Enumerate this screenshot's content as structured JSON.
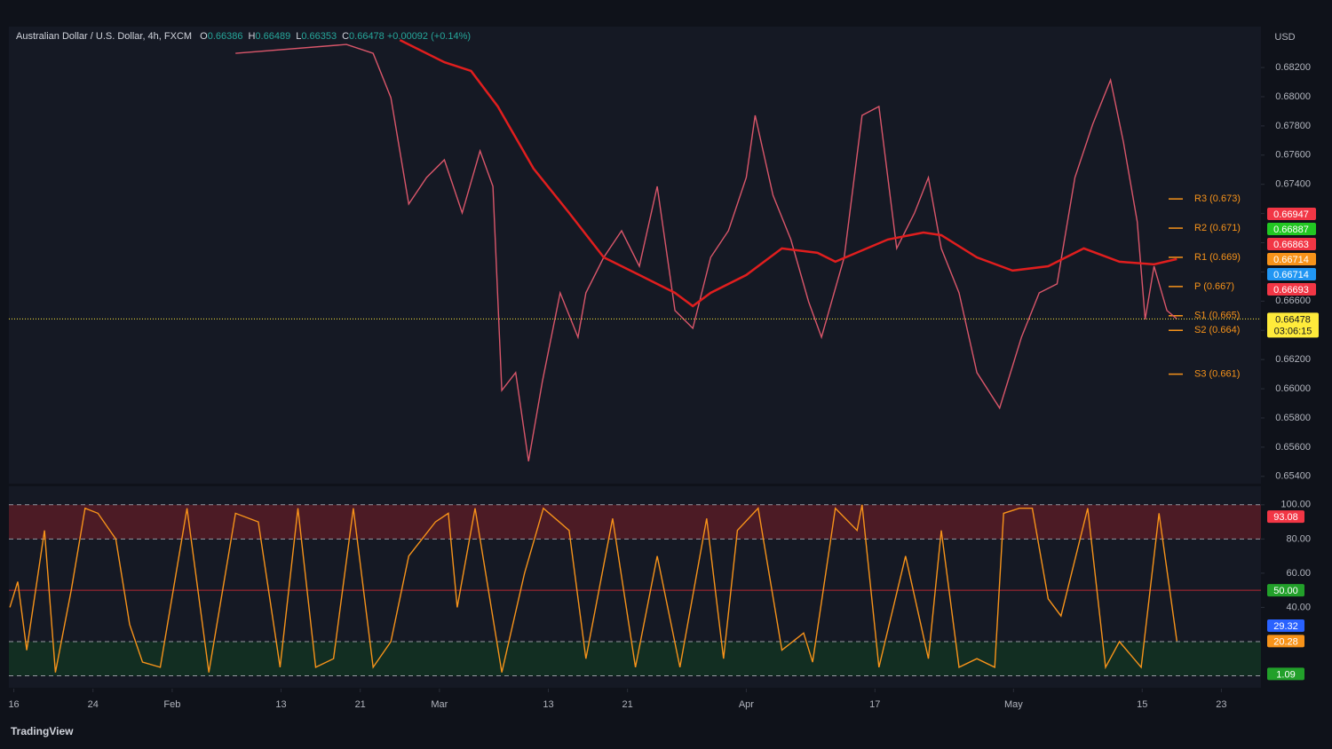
{
  "header": {
    "symbol": "Australian Dollar / U.S. Dollar, 4h, FXCM",
    "ohlc": [
      {
        "key": "O",
        "value": "0.66386"
      },
      {
        "key": "H",
        "value": "0.66489"
      },
      {
        "key": "L",
        "value": "0.66353"
      },
      {
        "key": "C",
        "value": "0.66478"
      }
    ],
    "change": "+0.00092 (+0.14%)"
  },
  "brand": "TradingView",
  "chart_data": [
    {
      "type": "line",
      "currency": "USD",
      "xlim": [
        -0.5,
        126
      ],
      "xticks": [
        {
          "value": 0,
          "label": "16"
        },
        {
          "value": 8,
          "label": "24"
        },
        {
          "value": 16,
          "label": "Feb"
        },
        {
          "value": 27,
          "label": "13"
        },
        {
          "value": 35,
          "label": "21"
        },
        {
          "value": 43,
          "label": "Mar"
        },
        {
          "value": 54,
          "label": "13"
        },
        {
          "value": 62,
          "label": "21"
        },
        {
          "value": 74,
          "label": "Apr"
        },
        {
          "value": 87,
          "label": "17"
        },
        {
          "value": 101,
          "label": "May"
        },
        {
          "value": 114,
          "label": "15"
        },
        {
          "value": 122,
          "label": "23"
        }
      ],
      "ylim": [
        0.6535,
        0.6848
      ],
      "yticks": [
        {
          "value": 0.654,
          "label": "0.65400"
        },
        {
          "value": 0.656,
          "label": "0.65600"
        },
        {
          "value": 0.658,
          "label": "0.65800"
        },
        {
          "value": 0.66,
          "label": "0.66000"
        },
        {
          "value": 0.662,
          "label": "0.66200"
        },
        {
          "value": 0.664,
          "label": "0.66400"
        },
        {
          "value": 0.666,
          "label": "0.66600"
        },
        {
          "value": 0.668,
          "label": "0.66800"
        },
        {
          "value": 0.67,
          "label": "0.67000"
        },
        {
          "value": 0.672,
          "label": "0.67200"
        },
        {
          "value": 0.674,
          "label": "0.67400"
        },
        {
          "value": 0.676,
          "label": "0.67600"
        },
        {
          "value": 0.678,
          "label": "0.67800"
        },
        {
          "value": 0.68,
          "label": "0.68000"
        },
        {
          "value": 0.682,
          "label": "0.68200"
        }
      ],
      "series": [
        {
          "color": "#d9566a",
          "x": [
            22.4,
            33.6,
            36.3,
            38.1,
            39.9,
            41.7,
            43.5,
            45.3,
            47.1,
            48.4,
            49.3,
            50.7,
            52.0,
            53.4,
            55.2,
            57.0,
            57.8,
            59.6,
            61.4,
            63.2,
            65.0,
            66.8,
            68.6,
            70.4,
            72.2,
            74.0,
            74.9,
            76.7,
            78.5,
            80.3,
            81.6,
            83.9,
            85.7,
            87.4,
            89.2,
            91.0,
            92.4,
            93.7,
            95.5,
            97.3,
            99.6,
            101.8,
            103.6,
            105.4,
            107.2,
            109.0,
            110.8,
            112.1,
            113.5,
            114.3,
            115.2,
            116.5,
            117.5
          ],
          "values": [
            0.68297,
            0.68358,
            0.68297,
            0.67993,
            0.67265,
            0.67447,
            0.67568,
            0.67204,
            0.67629,
            0.67386,
            0.65989,
            0.66111,
            0.65503,
            0.6605,
            0.66657,
            0.66353,
            0.66657,
            0.669,
            0.67082,
            0.66839,
            0.67386,
            0.66536,
            0.66414,
            0.669,
            0.67082,
            0.67447,
            0.67872,
            0.67325,
            0.67022,
            0.66596,
            0.66353,
            0.669,
            0.67872,
            0.67933,
            0.66961,
            0.67204,
            0.67447,
            0.66961,
            0.66657,
            0.66111,
            0.65868,
            0.66353,
            0.66657,
            0.66718,
            0.67447,
            0.67811,
            0.68115,
            0.6769,
            0.67143,
            0.66475,
            0.66839,
            0.66536,
            0.66478
          ]
        },
        {
          "color": "#e01e1e",
          "x": [
            39.0,
            43.5,
            46.2,
            48.9,
            52.5,
            56.1,
            59.6,
            63.2,
            66.8,
            68.6,
            70.4,
            74.0,
            77.6,
            81.2,
            83.0,
            88.3,
            91.9,
            93.7,
            97.3,
            100.9,
            104.5,
            108.1,
            111.7,
            115.2,
            117.5
          ],
          "values": [
            0.68388,
            0.68236,
            0.68176,
            0.67933,
            0.67508,
            0.67204,
            0.669,
            0.66779,
            0.66657,
            0.66566,
            0.66657,
            0.66779,
            0.66961,
            0.66931,
            0.6687,
            0.67022,
            0.6707,
            0.67052,
            0.669,
            0.66809,
            0.66839,
            0.66961,
            0.6687,
            0.66852,
            0.66888
          ]
        }
      ],
      "pivots": [
        {
          "label": "R3 (0.673)",
          "value": 0.673
        },
        {
          "label": "R2 (0.671)",
          "value": 0.671
        },
        {
          "label": "R1 (0.669)",
          "value": 0.669
        },
        {
          "label": "P (0.667)",
          "value": 0.667
        },
        {
          "label": "S1 (0.665)",
          "value": 0.665
        },
        {
          "label": "S2 (0.664)",
          "value": 0.664
        },
        {
          "label": "S3 (0.661)",
          "value": 0.661
        }
      ],
      "price_labels": [
        {
          "value": 0.66947,
          "color": "#f23645"
        },
        {
          "value": 0.66887,
          "color": "#22c722"
        },
        {
          "value": 0.66863,
          "color": "#f23645"
        },
        {
          "value": 0.66714,
          "color": "#f7931a"
        },
        {
          "value": 0.66714,
          "color": "#2196f3"
        },
        {
          "value": 0.66693,
          "color": "#f23645"
        }
      ],
      "last_price": {
        "value": 0.66478,
        "countdown": "03:06:15",
        "color": "#ffeb3b"
      }
    },
    {
      "type": "line",
      "xlim": [
        -0.5,
        126
      ],
      "ylim": [
        -7,
        110.8
      ],
      "yticks": [
        {
          "value": 100,
          "label": "100.00"
        },
        {
          "value": 80,
          "label": "80.00"
        },
        {
          "value": 60,
          "label": "60.00"
        },
        {
          "value": 40,
          "label": "40.00"
        }
      ],
      "bands": [
        {
          "from": 80,
          "to": 100,
          "color": "#5a1c26"
        },
        {
          "from": 0,
          "to": 20,
          "color": "#123322"
        }
      ],
      "levels": [
        100,
        80,
        20,
        0
      ],
      "midline": {
        "value": 50,
        "color": "#b22833"
      },
      "series": [
        {
          "color": "#f7931a",
          "x": [
            -0.4,
            0.4,
            1.3,
            3.1,
            4.2,
            5.8,
            7.2,
            8.5,
            10.3,
            11.7,
            13.0,
            14.8,
            17.5,
            19.7,
            22.4,
            24.7,
            26.9,
            28.7,
            30.5,
            32.3,
            34.3,
            36.3,
            38.1,
            39.9,
            42.6,
            43.9,
            44.8,
            46.6,
            49.3,
            51.6,
            53.5,
            56.1,
            57.8,
            60.5,
            62.8,
            65.0,
            67.3,
            70.0,
            71.7,
            73.1,
            75.2,
            77.6,
            79.8,
            80.7,
            83.0,
            85.2,
            85.7,
            87.4,
            90.1,
            92.4,
            93.7,
            95.5,
            97.3,
            99.1,
            100.0,
            101.6,
            102.9,
            104.5,
            105.8,
            108.5,
            110.3,
            111.7,
            113.9,
            115.7,
            117.5
          ],
          "values": [
            40,
            55,
            15,
            85,
            2,
            50,
            98,
            95,
            80,
            30,
            8,
            5,
            98,
            2,
            95,
            90,
            5,
            98,
            5,
            10,
            98,
            5,
            20,
            70,
            90,
            95,
            40,
            98,
            2,
            60,
            98,
            85,
            10,
            92,
            5,
            70,
            5,
            92,
            10,
            85,
            98,
            15,
            25,
            8,
            98,
            85,
            100,
            5,
            70,
            10,
            85,
            5,
            10,
            5,
            95,
            98,
            98,
            45,
            35,
            98,
            5,
            20,
            5,
            95,
            20.28
          ]
        }
      ],
      "value_chips": [
        {
          "value": 93.08,
          "color": "#f23645"
        },
        {
          "value": 50,
          "label": "50.00",
          "color": "#22a02a"
        },
        {
          "value": 29.32,
          "color": "#2962ff"
        },
        {
          "value": 20.28,
          "color": "#f7931a"
        },
        {
          "value": 1.09,
          "color": "#22a02a"
        }
      ]
    }
  ]
}
